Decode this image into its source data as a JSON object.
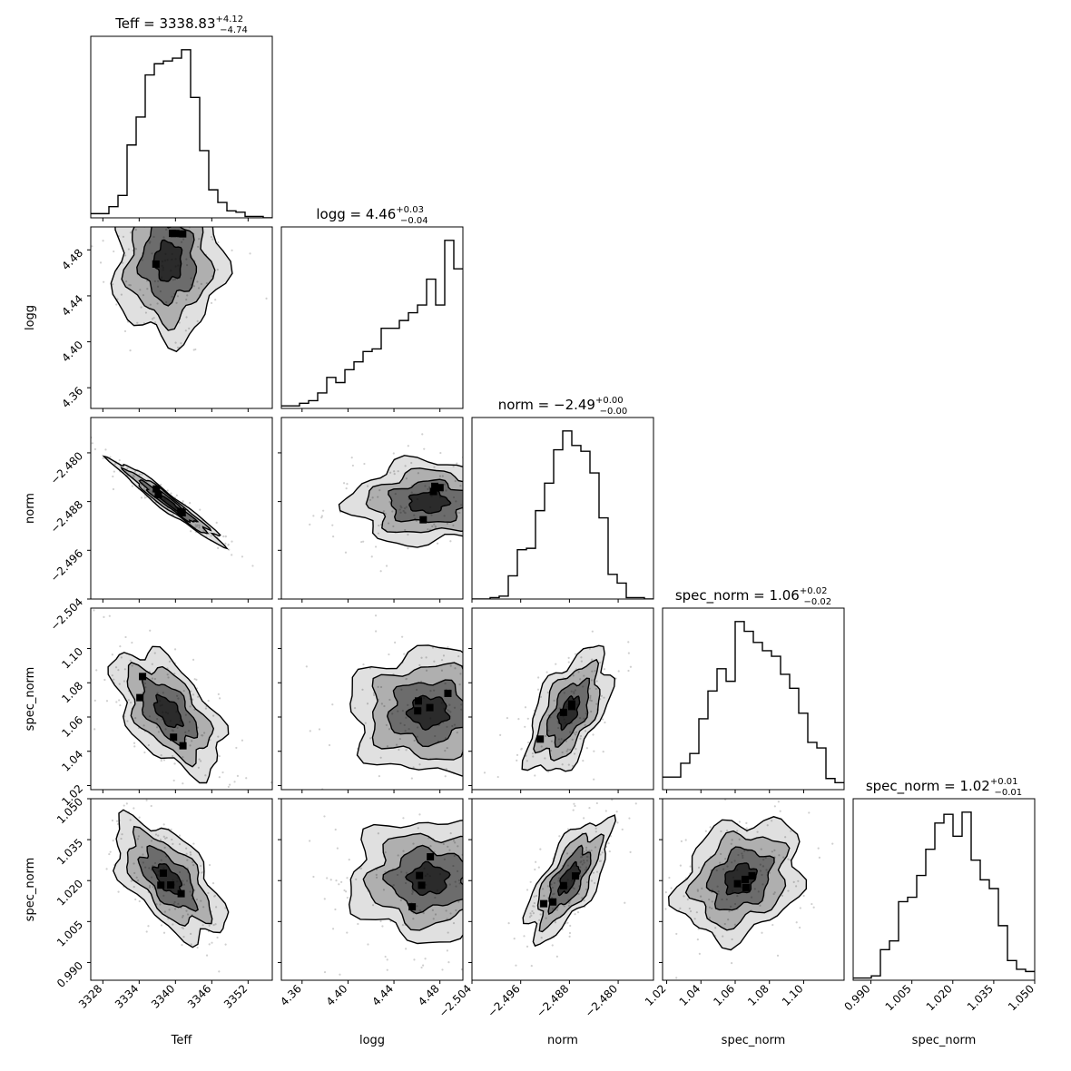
{
  "chart_data": {
    "type": "corner",
    "colors": {
      "line": "#000000",
      "frame": "#000000",
      "background": "#ffffff",
      "density": "#000000",
      "scatter": "#cfcfcf"
    },
    "parameters": [
      {
        "name": "Teff",
        "label": "Teff",
        "range": [
          3326,
          3356
        ],
        "ticks": [
          3328,
          3334,
          3340,
          3346,
          3352
        ],
        "tick_labels": [
          "3328",
          "3334",
          "3340",
          "3346",
          "3352"
        ],
        "title": {
          "prefix": "Teff = 3338.83",
          "sup": "+4.12",
          "sub": "−4.74"
        },
        "center": 3338.8,
        "sigma": 4.5
      },
      {
        "name": "logg",
        "label": "logg",
        "range": [
          4.342,
          4.5
        ],
        "ticks": [
          4.36,
          4.4,
          4.44,
          4.48
        ],
        "tick_labels": [
          "4.36",
          "4.40",
          "4.44",
          "4.48"
        ],
        "title": {
          "prefix": "logg = 4.46",
          "sup": "+0.03",
          "sub": "−0.04"
        },
        "center": 4.47,
        "sigma": 0.034
      },
      {
        "name": "norm",
        "label": "norm",
        "range": [
          -2.504,
          -2.4742
        ],
        "ticks": [
          -2.504,
          -2.496,
          -2.488,
          -2.48
        ],
        "tick_labels": [
          "−2.504",
          "−2.496",
          "−2.488",
          "−2.480"
        ],
        "title": {
          "prefix": "norm = −2.49",
          "sup": "+0.00",
          "sub": "−0.00"
        },
        "center": -2.4881,
        "sigma": 0.0034
      },
      {
        "name": "spec_norm",
        "label": "spec_norm",
        "range": [
          1.0176,
          1.1236
        ],
        "ticks": [
          1.02,
          1.04,
          1.06,
          1.08,
          1.1
        ],
        "tick_labels": [
          "1.02",
          "1.04",
          "1.06",
          "1.08",
          "1.10"
        ],
        "title": {
          "prefix": "spec_norm = 1.06",
          "sup": "+0.02",
          "sub": "−0.02"
        },
        "center": 1.063,
        "sigma": 0.018
      },
      {
        "name": "spec_norm",
        "label": "spec_norm",
        "range": [
          0.9835,
          1.05
        ],
        "ticks": [
          0.99,
          1.005,
          1.02,
          1.035,
          1.05
        ],
        "tick_labels": [
          "0.990",
          "1.005",
          "1.020",
          "1.035",
          "1.050"
        ],
        "title": {
          "prefix": "spec_norm = 1.02",
          "sup": "+0.01",
          "sub": "−0.01"
        },
        "center": 1.0205,
        "sigma": 0.011
      }
    ],
    "histograms": [
      {
        "param": 0,
        "bins": 20,
        "counts": [
          3,
          3,
          8,
          16,
          52,
          72,
          102,
          110,
          112,
          114,
          120,
          86,
          48,
          20,
          11,
          5,
          4,
          1,
          1,
          0
        ]
      },
      {
        "param": 1,
        "bins": 20,
        "counts": [
          1,
          1,
          2,
          3,
          6,
          12,
          10,
          15,
          18,
          22,
          23,
          31,
          31,
          34,
          37,
          40,
          50,
          40,
          65,
          54
        ]
      },
      {
        "param": 2,
        "bins": 20,
        "counts": [
          0,
          0,
          1,
          2,
          16,
          34,
          35,
          61,
          80,
          103,
          116,
          106,
          102,
          87,
          56,
          17,
          11,
          1,
          1,
          0
        ]
      },
      {
        "param": 3,
        "bins": 20,
        "counts": [
          9,
          9,
          19,
          26,
          51,
          71,
          87,
          78,
          121,
          114,
          106,
          100,
          96,
          83,
          73,
          55,
          34,
          30,
          8,
          5
        ]
      },
      {
        "param": 4,
        "bins": 20,
        "counts": [
          1,
          1,
          2,
          14,
          18,
          36,
          38,
          48,
          60,
          72,
          76,
          66,
          77,
          55,
          46,
          42,
          25,
          9,
          5,
          4
        ]
      }
    ],
    "correlations": {
      "0-1": 0.0,
      "0-2": -0.97,
      "0-3": -0.55,
      "0-4": -0.6,
      "1-2": 0.05,
      "1-3": 0.0,
      "1-4": 0.0,
      "2-3": 0.55,
      "2-4": 0.7,
      "3-4": 0.25
    },
    "grid": false
  }
}
